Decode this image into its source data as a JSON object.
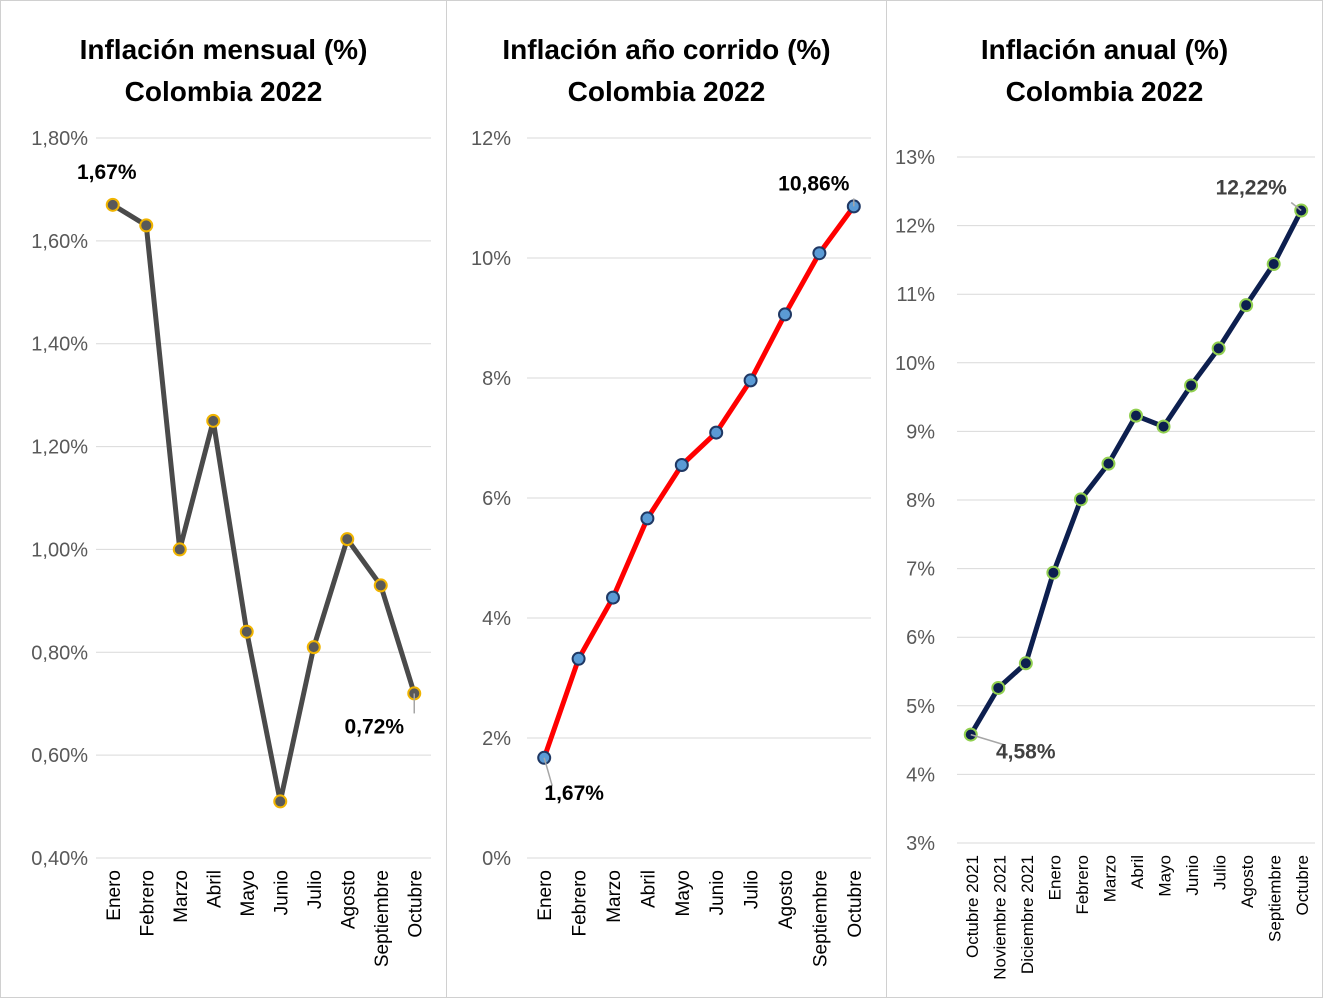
{
  "chart_data": [
    {
      "type": "line",
      "title": "Inflación mensual (%)",
      "subtitle": "Colombia 2022",
      "categories": [
        "Enero",
        "Febrero",
        "Marzo",
        "Abril",
        "Mayo",
        "Junio",
        "Julio",
        "Agosto",
        "Septiembre",
        "Octubre"
      ],
      "series": [
        {
          "values": [
            1.67,
            1.63,
            1.0,
            1.25,
            0.84,
            0.51,
            0.81,
            1.02,
            0.93,
            0.72
          ]
        }
      ],
      "ylim": [
        0.4,
        1.8
      ],
      "yticks": [
        0.4,
        0.6,
        0.8,
        1.0,
        1.2,
        1.4,
        1.6,
        1.8
      ],
      "ytick_labels": [
        "0,40%",
        "0,60%",
        "0,80%",
        "1,00%",
        "1,20%",
        "1,40%",
        "1,60%",
        "1,80%"
      ],
      "data_labels": [
        {
          "index": 0,
          "text": "1,67%",
          "position": "above"
        },
        {
          "index": 9,
          "text": "0,72%",
          "position": "below-left"
        }
      ],
      "line_color": "#4a4a4a",
      "marker_fill": "#595959",
      "marker_edge": "#f0b400",
      "grid": true
    },
    {
      "type": "line",
      "title": "Inflación año corrido (%)",
      "subtitle": "Colombia 2022",
      "categories": [
        "Enero",
        "Febrero",
        "Marzo",
        "Abril",
        "Mayo",
        "Junio",
        "Julio",
        "Agosto",
        "Septiembre",
        "Octubre"
      ],
      "series": [
        {
          "values": [
            1.67,
            3.32,
            4.34,
            5.66,
            6.55,
            7.09,
            7.96,
            9.06,
            10.08,
            10.86
          ]
        }
      ],
      "ylim": [
        0,
        12
      ],
      "yticks": [
        0,
        2,
        4,
        6,
        8,
        10,
        12
      ],
      "ytick_labels": [
        "0%",
        "2%",
        "4%",
        "6%",
        "8%",
        "10%",
        "12%"
      ],
      "data_labels": [
        {
          "index": 0,
          "text": "1,67%",
          "position": "below-right"
        },
        {
          "index": 9,
          "text": "10,86%",
          "position": "above-left"
        }
      ],
      "line_color": "#ff0000",
      "marker_fill": "#5b9bd5",
      "marker_edge": "#1f3864",
      "grid": true
    },
    {
      "type": "line",
      "title": "Inflación anual (%)",
      "subtitle": "Colombia 2022",
      "categories": [
        "Octubre 2021",
        "Noviembre 2021",
        "Diciembre 2021",
        "Enero",
        "Febrero",
        "Marzo",
        "Abril",
        "Mayo",
        "Junio",
        "Julio",
        "Agosto",
        "Septiembre",
        "Octubre"
      ],
      "series": [
        {
          "values": [
            4.58,
            5.26,
            5.62,
            6.94,
            8.01,
            8.53,
            9.23,
            9.07,
            9.67,
            10.21,
            10.84,
            11.44,
            12.22
          ]
        }
      ],
      "ylim": [
        3,
        13
      ],
      "yticks": [
        3,
        4,
        5,
        6,
        7,
        8,
        9,
        10,
        11,
        12,
        13
      ],
      "ytick_labels": [
        "3%",
        "4%",
        "5%",
        "6%",
        "7%",
        "8%",
        "9%",
        "10%",
        "11%",
        "12%",
        "13%"
      ],
      "data_labels": [
        {
          "index": 0,
          "text": "4,58%",
          "position": "below-right"
        },
        {
          "index": 12,
          "text": "12,22%",
          "position": "above-left"
        }
      ],
      "line_color": "#0d1f4f",
      "marker_fill": "#0d1f4f",
      "marker_edge": "#92d050",
      "grid": true
    }
  ]
}
